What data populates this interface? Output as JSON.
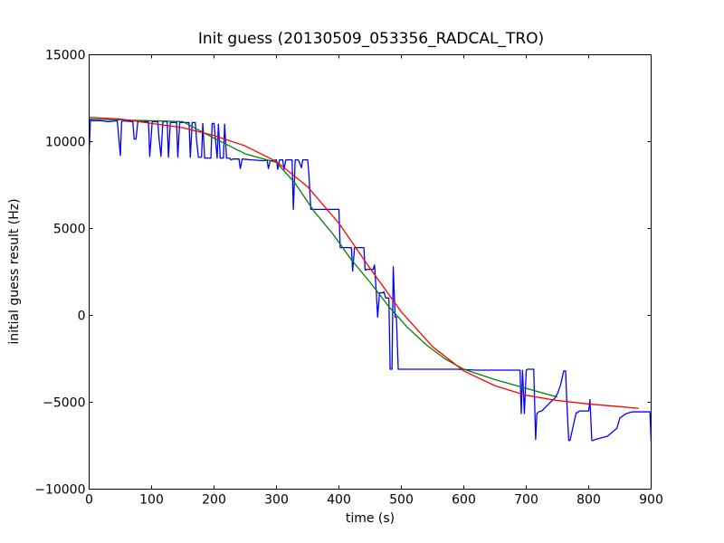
{
  "chart_data": {
    "type": "line",
    "title": "Init guess (20130509_053356_RADCAL_TRO)",
    "xlabel": "time (s)",
    "ylabel": "initial guess result (Hz)",
    "xlim": [
      0,
      900
    ],
    "ylim": [
      -10000,
      15000
    ],
    "x_ticks": [
      0,
      100,
      200,
      300,
      400,
      500,
      600,
      700,
      800,
      900
    ],
    "y_ticks": [
      -10000,
      -5000,
      0,
      5000,
      10000,
      15000
    ],
    "x_tick_labels": [
      "0",
      "100",
      "200",
      "300",
      "400",
      "500",
      "600",
      "700",
      "800",
      "900"
    ],
    "y_tick_labels": [
      "−10000",
      "−5000",
      "0",
      "5000",
      "10000",
      "15000"
    ],
    "grid": false,
    "legend": "none",
    "series": [
      {
        "color": "#0000ff",
        "x": [
          0,
          2,
          5,
          20,
          30,
          45,
          50,
          52,
          55,
          70,
          72,
          75,
          78,
          80,
          95,
          97,
          99,
          101,
          103,
          110,
          112,
          115,
          118,
          120,
          125,
          127,
          130,
          140,
          142,
          145,
          160,
          162,
          165,
          170,
          172,
          175,
          180,
          182,
          185,
          195,
          197,
          200,
          205,
          207,
          210,
          215,
          217,
          220,
          225,
          227,
          230,
          240,
          242,
          245,
          260,
          280,
          285,
          287,
          290,
          300,
          302,
          305,
          310,
          312,
          315,
          325,
          327,
          330,
          335,
          340,
          342,
          345,
          350,
          352,
          355,
          365,
          375,
          400,
          402,
          405,
          420,
          422,
          425,
          440,
          442,
          445,
          455,
          457,
          460,
          462,
          465,
          470,
          472,
          475,
          480,
          482,
          485,
          487,
          490,
          492,
          495,
          520,
          540,
          550,
          560,
          590,
          620,
          650,
          670,
          690,
          692,
          694,
          697,
          700,
          702,
          705,
          710,
          712,
          715,
          717,
          720,
          725,
          740,
          745,
          750,
          755,
          760,
          763,
          765,
          768,
          770,
          780,
          782,
          785,
          800,
          802,
          805,
          807,
          810,
          830,
          845,
          850,
          860,
          870,
          880,
          898,
          900
        ],
        "y": [
          9300,
          11250,
          11200,
          11200,
          11150,
          11200,
          9200,
          11150,
          11200,
          11150,
          10150,
          10150,
          11150,
          11150,
          11150,
          9150,
          10100,
          11150,
          11150,
          11150,
          10150,
          9150,
          11150,
          11150,
          11150,
          9100,
          11100,
          11100,
          9100,
          11100,
          11100,
          9100,
          11100,
          11100,
          10100,
          9100,
          9100,
          11050,
          9050,
          9050,
          11050,
          11050,
          9050,
          11000,
          9050,
          9050,
          11000,
          9050,
          9050,
          8950,
          9000,
          9000,
          8450,
          9000,
          8950,
          8900,
          8950,
          8450,
          8900,
          8950,
          8400,
          8950,
          8950,
          8400,
          8950,
          8950,
          6100,
          8950,
          8950,
          8500,
          8950,
          8950,
          8950,
          8100,
          6100,
          6100,
          6100,
          6100,
          3900,
          3900,
          3900,
          2550,
          3900,
          3900,
          2600,
          2650,
          2650,
          2900,
          1250,
          -100,
          1300,
          1300,
          1350,
          1000,
          1000,
          -3100,
          -3100,
          2800,
          -100,
          -100,
          -3100,
          -3100,
          -3100,
          -3100,
          -3100,
          -3100,
          -3150,
          -3150,
          -3150,
          -3150,
          -5650,
          -3150,
          -5650,
          -3150,
          -3100,
          -3100,
          -3100,
          -3100,
          -7150,
          -5650,
          -5550,
          -5500,
          -4950,
          -4800,
          -4500,
          -4000,
          -3200,
          -3200,
          -5000,
          -7200,
          -7200,
          -5600,
          -5600,
          -5500,
          -5500,
          -4850,
          -7200,
          -7200,
          -7150,
          -6950,
          -6500,
          -5900,
          -5650,
          -5550,
          -5550,
          -5550,
          -7250
        ]
      },
      {
        "color": "#008000",
        "x": [
          0,
          50,
          100,
          150,
          200,
          250,
          300,
          330,
          360,
          390,
          420,
          450,
          480,
          510,
          540,
          570,
          600,
          650,
          700,
          750
        ],
        "y": [
          11300,
          11250,
          11200,
          11150,
          10200,
          9300,
          8800,
          7600,
          6000,
          4700,
          3200,
          1900,
          500,
          -700,
          -1700,
          -2500,
          -3100,
          -3700,
          -4200,
          -4700
        ]
      },
      {
        "color": "#ff0000",
        "x": [
          0,
          50,
          100,
          150,
          200,
          250,
          300,
          350,
          400,
          450,
          500,
          550,
          600,
          650,
          700,
          750,
          800,
          850,
          880
        ],
        "y": [
          11400,
          11300,
          11050,
          10800,
          10350,
          9750,
          8850,
          7400,
          5300,
          2700,
          200,
          -1800,
          -3200,
          -4050,
          -4600,
          -4900,
          -5100,
          -5250,
          -5350
        ]
      }
    ]
  }
}
